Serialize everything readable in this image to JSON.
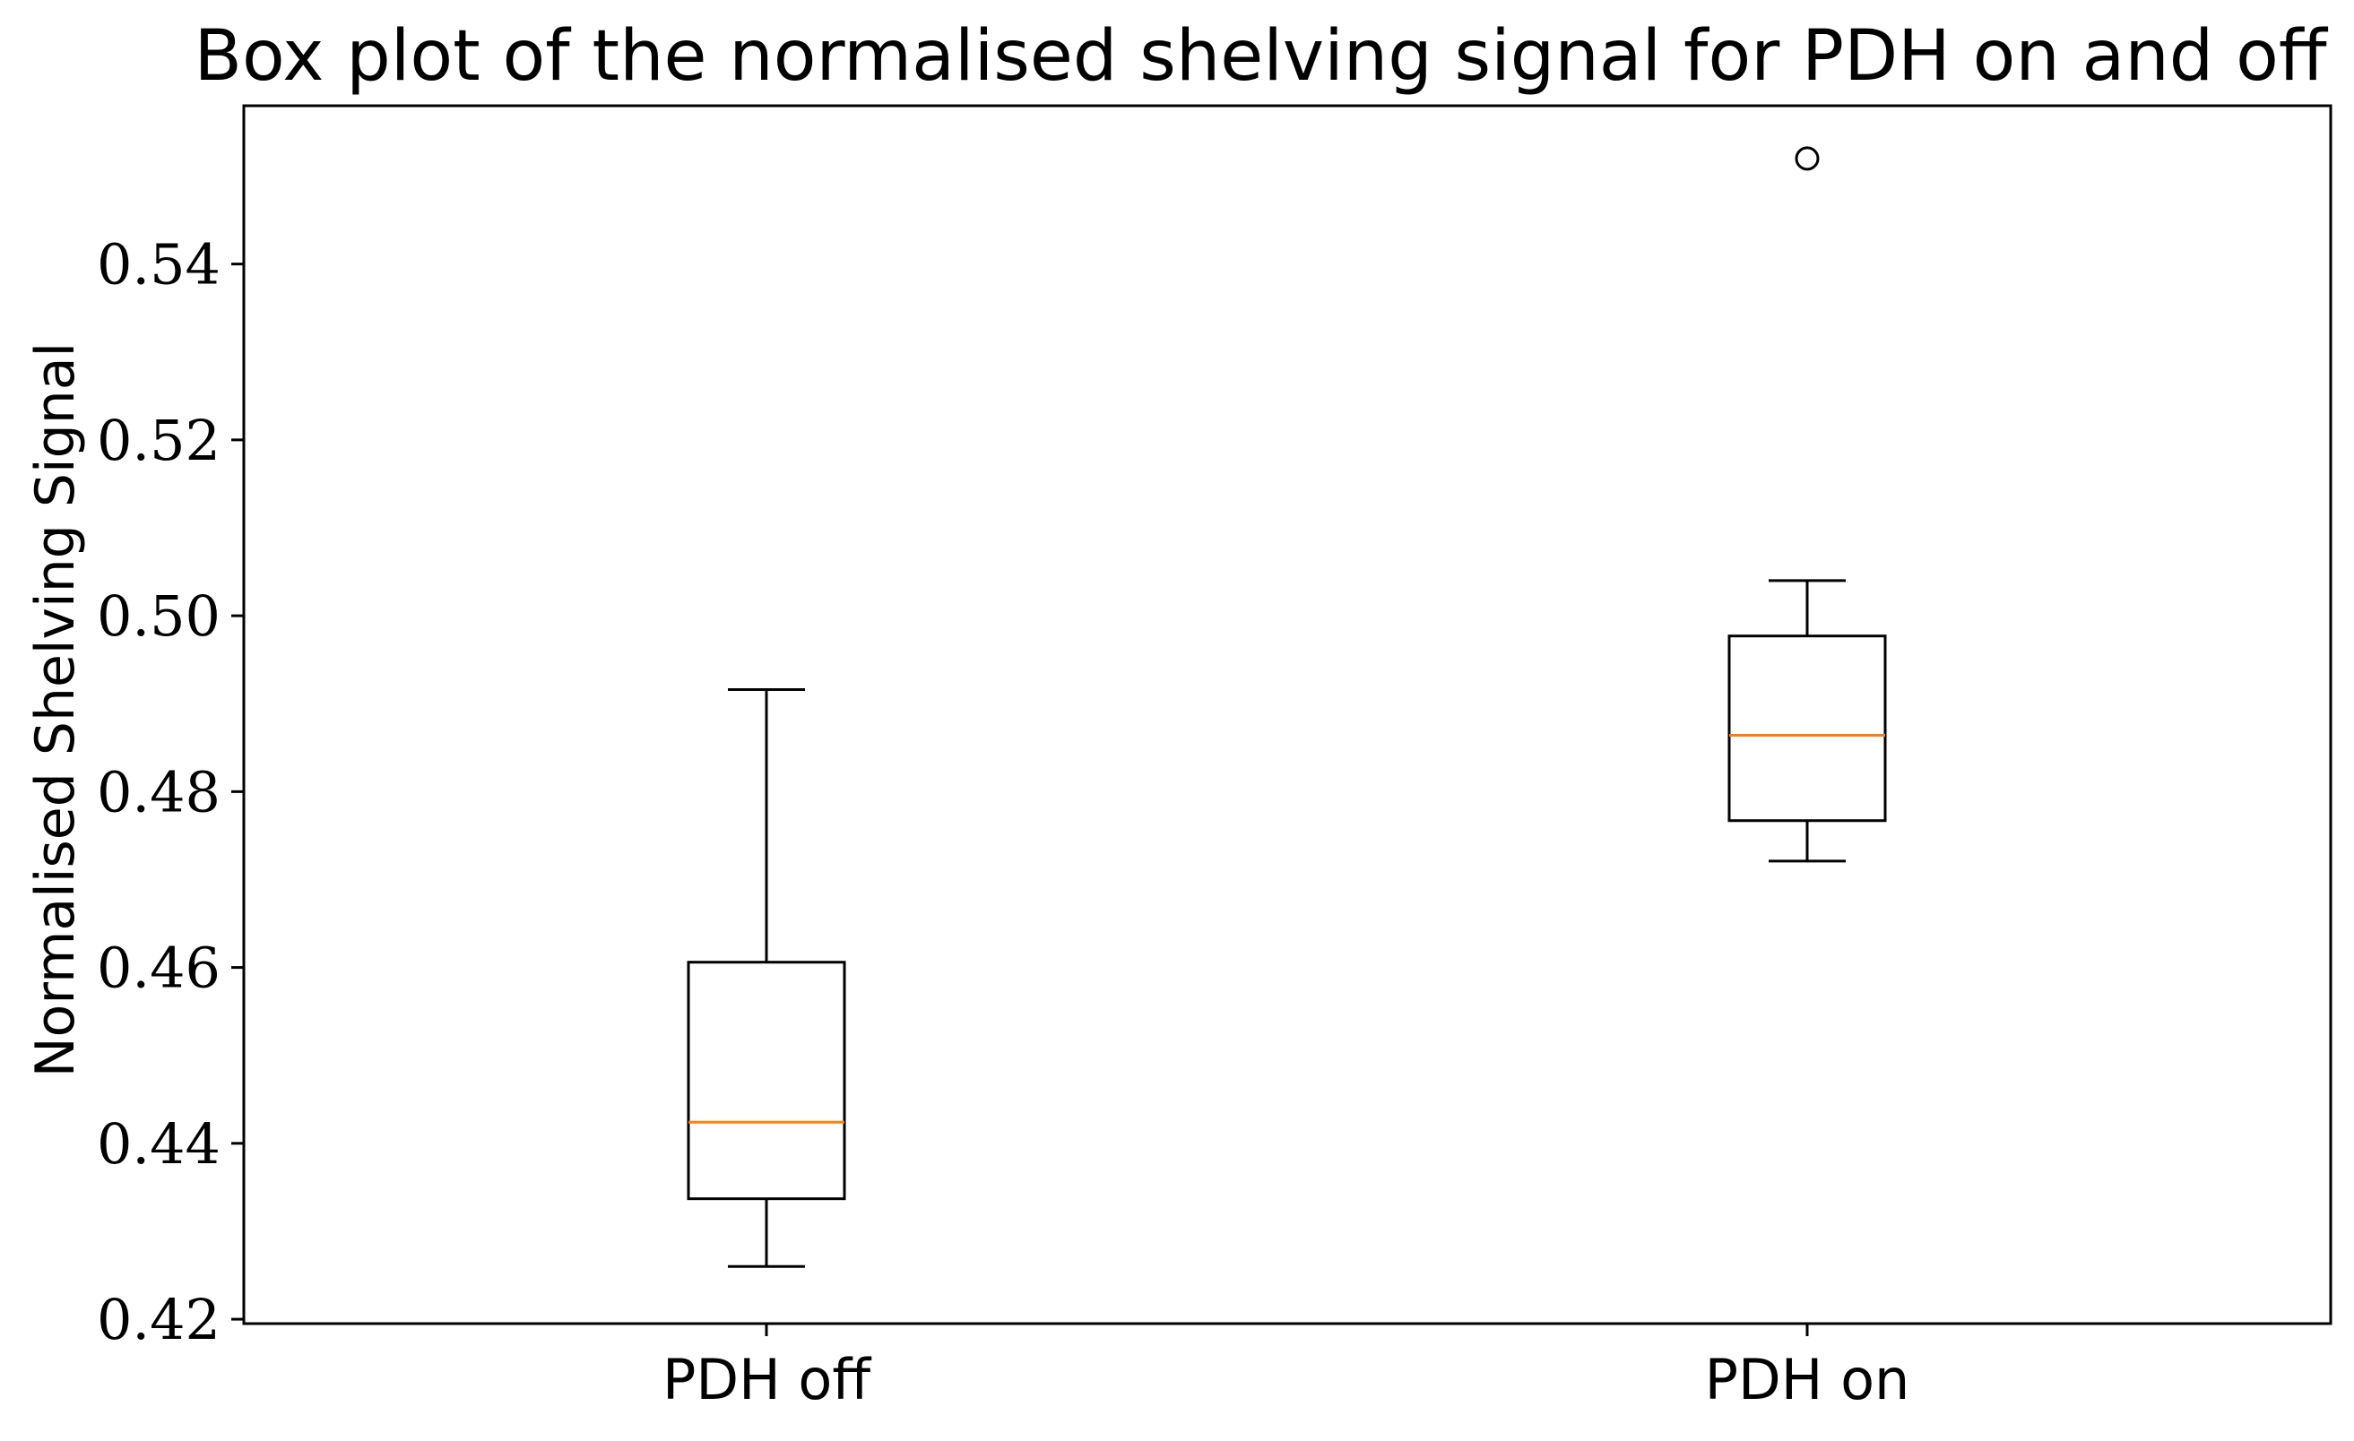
{
  "chart_data": {
    "type": "box",
    "title": "Box plot of the normalised shelving signal for PDH on and off",
    "xlabel": "",
    "ylabel": "Normalised Shelving Signal",
    "categories": [
      "PDH off",
      "PDH on"
    ],
    "ylim": [
      0.4195,
      0.558
    ],
    "yticks": [
      0.42,
      0.44,
      0.46,
      0.48,
      0.5,
      0.52,
      0.54
    ],
    "ytick_labels": [
      "0.42",
      "0.44",
      "0.46",
      "0.48",
      "0.50",
      "0.52",
      "0.54"
    ],
    "boxes": [
      {
        "label": "PDH off",
        "whisker_low": 0.426,
        "q1": 0.4337,
        "median": 0.4424,
        "q3": 0.4606,
        "whisker_high": 0.4916,
        "outliers": []
      },
      {
        "label": "PDH on",
        "whisker_low": 0.4721,
        "q1": 0.4767,
        "median": 0.4864,
        "q3": 0.4977,
        "whisker_high": 0.504,
        "outliers": [
          0.552
        ]
      }
    ],
    "grid": false,
    "legend": "none",
    "colors": {
      "box": "#000000",
      "median": "#ff7f0e",
      "whisker": "#000000",
      "outlier": "#000000"
    }
  }
}
